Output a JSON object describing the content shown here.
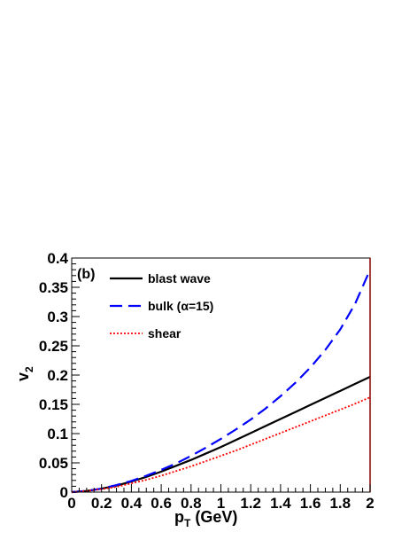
{
  "chart_data": {
    "type": "line",
    "panel_label": "(b)",
    "xlabel_main": "p",
    "xlabel_sub": "T",
    "xlabel_rest": " (GeV)",
    "ylabel_main": "v",
    "ylabel_sub": "2",
    "xlim": [
      0,
      2
    ],
    "ylim": [
      0,
      0.4
    ],
    "x_ticks": [
      "0",
      "0.2",
      "0.4",
      "0.6",
      "0.8",
      "1",
      "1.2",
      "1.4",
      "1.6",
      "1.8",
      "2"
    ],
    "y_ticks": [
      "0",
      "0.05",
      "0.1",
      "0.15",
      "0.2",
      "0.25",
      "0.3",
      "0.35",
      "0.4"
    ],
    "legend_position": "top-left",
    "series": [
      {
        "name": "blast wave",
        "color": "#000000",
        "style": "solid",
        "x": [
          0,
          0.1,
          0.2,
          0.3,
          0.4,
          0.5,
          0.6,
          0.7,
          0.8,
          0.9,
          1.0,
          1.1,
          1.2,
          1.3,
          1.4,
          1.5,
          1.6,
          1.7,
          1.8,
          1.9,
          2.0
        ],
        "y": [
          0,
          0.002,
          0.006,
          0.011,
          0.018,
          0.026,
          0.035,
          0.045,
          0.055,
          0.066,
          0.077,
          0.089,
          0.101,
          0.113,
          0.125,
          0.137,
          0.149,
          0.161,
          0.173,
          0.185,
          0.197
        ]
      },
      {
        "name": "bulk (α=15)",
        "color": "#0000ff",
        "style": "dashed",
        "x": [
          0,
          0.1,
          0.2,
          0.3,
          0.4,
          0.5,
          0.6,
          0.7,
          0.8,
          0.9,
          1.0,
          1.1,
          1.2,
          1.3,
          1.4,
          1.5,
          1.6,
          1.7,
          1.8,
          1.9,
          2.0
        ],
        "y": [
          0,
          0.002,
          0.006,
          0.012,
          0.019,
          0.028,
          0.038,
          0.049,
          0.062,
          0.076,
          0.091,
          0.107,
          0.124,
          0.143,
          0.164,
          0.187,
          0.213,
          0.243,
          0.278,
          0.322,
          0.38
        ]
      },
      {
        "name": "shear",
        "color": "#ff0000",
        "style": "dotted",
        "x": [
          0,
          0.1,
          0.2,
          0.3,
          0.4,
          0.5,
          0.6,
          0.7,
          0.8,
          0.9,
          1.0,
          1.1,
          1.2,
          1.3,
          1.4,
          1.5,
          1.6,
          1.7,
          1.8,
          1.9,
          2.0
        ],
        "y": [
          0,
          0.002,
          0.005,
          0.009,
          0.015,
          0.021,
          0.028,
          0.036,
          0.044,
          0.053,
          0.062,
          0.071,
          0.081,
          0.091,
          0.101,
          0.111,
          0.121,
          0.131,
          0.141,
          0.151,
          0.162
        ]
      }
    ]
  }
}
